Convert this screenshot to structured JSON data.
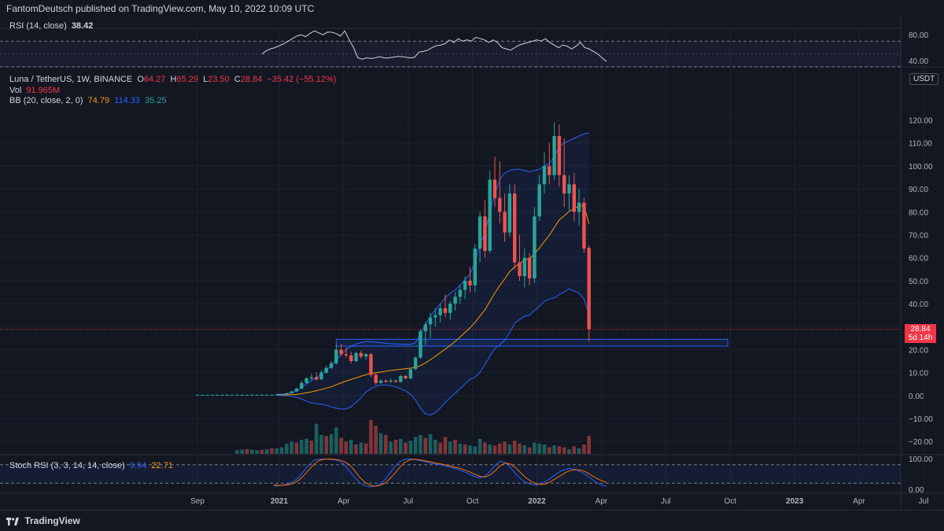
{
  "header": {
    "published": "FantomDeutsch published on TradingView.com, May 10, 2022 10:09 UTC"
  },
  "rsi": {
    "label": "RSI (14, close)",
    "value": "38.42",
    "ticks": [
      "80.00",
      "40.00"
    ]
  },
  "main_legend": {
    "symbol": "Luna / TetherUS, 1W, BINANCE",
    "o_label": "O",
    "o": "64.27",
    "h_label": "H",
    "h": "65.29",
    "l_label": "L",
    "l": "23.50",
    "c_label": "C",
    "c": "28.84",
    "change": "−35.42 (−55.12%)",
    "vol_label": "Vol",
    "vol": "91.965M",
    "bb_label": "BB (20, close, 2, 0)",
    "bb_mid": "74.79",
    "bb_up": "114.33",
    "bb_low": "35.25"
  },
  "currency": "USDT",
  "price_tag": {
    "price": "28.84",
    "countdown": "5d 14h"
  },
  "stoch": {
    "label": "Stoch RSI (3, 3, 14, 14, close)",
    "k": "9.94",
    "d": "22.71",
    "ticks": [
      "100.00",
      "0.00"
    ]
  },
  "footer": {
    "brand": "TradingView"
  },
  "colors": {
    "up": "#26a69a",
    "down": "#ef5350",
    "bb_mid": "#ff9800",
    "bb_band": "#2962ff",
    "bg": "#131722"
  },
  "chart_data": {
    "type": "candlestick",
    "y_ticks": [
      120,
      110,
      100,
      90,
      80,
      70,
      60,
      50,
      40,
      30,
      20,
      10,
      0,
      -10,
      -20
    ],
    "y_tick_labels": [
      "120.00",
      "110.00",
      "100.00",
      "90.00",
      "80.00",
      "70.00",
      "60.00",
      "50.00",
      "40.00",
      "30.00",
      "20.00",
      "10.00",
      "0.00",
      "−10.00",
      "−20.00"
    ],
    "ylim": [
      -22,
      126
    ],
    "x_labels": [
      "Sep",
      "2021",
      "Apr",
      "Jul",
      "Oct",
      "2022",
      "Apr",
      "Jul",
      "Oct",
      "2023",
      "Apr",
      "Jul"
    ],
    "x_label_weeks": [
      0,
      16.5,
      29.5,
      42.5,
      55.5,
      68.5,
      81.5,
      94.5,
      107.5,
      120.5,
      133.5,
      146.5
    ],
    "candles": [
      [
        0.3,
        0.3,
        0.3,
        0.3
      ],
      [
        0.3,
        0.3,
        0.3,
        0.3
      ],
      [
        0.3,
        0.3,
        0.3,
        0.3
      ],
      [
        0.3,
        0.3,
        0.3,
        0.3
      ],
      [
        0.3,
        0.4,
        0.2,
        0.3
      ],
      [
        0.3,
        0.4,
        0.2,
        0.3
      ],
      [
        0.3,
        0.4,
        0.2,
        0.3
      ],
      [
        0.3,
        0.4,
        0.2,
        0.3
      ],
      [
        0.3,
        0.4,
        0.2,
        0.3
      ],
      [
        0.3,
        0.4,
        0.2,
        0.3
      ],
      [
        0.3,
        0.4,
        0.2,
        0.3
      ],
      [
        0.3,
        0.4,
        0.2,
        0.3
      ],
      [
        0.3,
        0.4,
        0.2,
        0.3
      ],
      [
        0.3,
        0.4,
        0.2,
        0.3
      ],
      [
        0.3,
        0.4,
        0.2,
        0.3
      ],
      [
        0.3,
        0.4,
        0.2,
        0.3
      ],
      [
        0.4,
        0.6,
        0.3,
        0.5
      ],
      [
        0.5,
        0.7,
        0.4,
        0.6
      ],
      [
        0.6,
        1.2,
        0.5,
        1.0
      ],
      [
        1.0,
        2.0,
        0.8,
        1.8
      ],
      [
        1.8,
        3.5,
        1.6,
        3.0
      ],
      [
        3.0,
        6.5,
        2.8,
        5.5
      ],
      [
        5.5,
        8.0,
        5.0,
        7.5
      ],
      [
        7.5,
        9.5,
        6.5,
        8.0
      ],
      [
        8.0,
        10.0,
        6.5,
        7.0
      ],
      [
        7.0,
        11.0,
        6.8,
        10.0
      ],
      [
        10.0,
        13.0,
        9.5,
        12.0
      ],
      [
        12.0,
        15.0,
        11.5,
        14.0
      ],
      [
        14.0,
        22.0,
        13.5,
        20.0
      ],
      [
        20.0,
        22.5,
        17.0,
        18.0
      ],
      [
        18.0,
        21.0,
        16.5,
        17.5
      ],
      [
        17.5,
        19.0,
        14.0,
        15.0
      ],
      [
        15.0,
        19.0,
        14.5,
        18.5
      ],
      [
        18.5,
        19.5,
        16.0,
        17.0
      ],
      [
        17.0,
        18.5,
        15.5,
        18.0
      ],
      [
        18.0,
        18.5,
        8.0,
        9.0
      ],
      [
        9.0,
        10.0,
        4.5,
        5.5
      ],
      [
        5.5,
        7.0,
        5.0,
        6.5
      ],
      [
        6.5,
        7.0,
        5.5,
        6.0
      ],
      [
        6.0,
        7.5,
        5.5,
        6.5
      ],
      [
        6.5,
        7.0,
        5.5,
        6.0
      ],
      [
        6.0,
        9.0,
        5.5,
        8.5
      ],
      [
        8.5,
        9.0,
        7.0,
        7.5
      ],
      [
        7.5,
        12.0,
        7.0,
        11.5
      ],
      [
        11.5,
        17.0,
        11.0,
        16.5
      ],
      [
        16.5,
        29.0,
        16.0,
        28.0
      ],
      [
        28.0,
        32.0,
        22.0,
        31.0
      ],
      [
        31.0,
        36.0,
        25.0,
        34.0
      ],
      [
        34.0,
        38.0,
        30.0,
        35.0
      ],
      [
        35.0,
        40.0,
        32.0,
        38.0
      ],
      [
        38.0,
        44.0,
        34.0,
        36.0
      ],
      [
        36.0,
        41.0,
        33.0,
        40.0
      ],
      [
        40.0,
        45.0,
        37.0,
        43.0
      ],
      [
        43.0,
        48.0,
        40.0,
        46.0
      ],
      [
        46.0,
        52.0,
        42.0,
        50.0
      ],
      [
        50.0,
        56.0,
        45.0,
        48.0
      ],
      [
        48.0,
        66.0,
        45.0,
        64.0
      ],
      [
        64.0,
        80.0,
        58.0,
        78.0
      ],
      [
        78.0,
        85.0,
        60.0,
        63.0
      ],
      [
        63.0,
        98.0,
        62.0,
        94.0
      ],
      [
        94.0,
        104.0,
        82.0,
        86.0
      ],
      [
        86.0,
        102.0,
        75.0,
        80.0
      ],
      [
        80.0,
        88.0,
        67.0,
        71.0
      ],
      [
        71.0,
        92.0,
        69.0,
        88.0
      ],
      [
        88.0,
        92.0,
        55.0,
        58.0
      ],
      [
        58.0,
        70.0,
        50.0,
        52.0
      ],
      [
        52.0,
        64.0,
        47.0,
        60.0
      ],
      [
        60.0,
        62.0,
        48.0,
        51.0
      ],
      [
        51.0,
        82.0,
        49.0,
        78.0
      ],
      [
        78.0,
        96.0,
        76.0,
        92.0
      ],
      [
        92.0,
        106.0,
        88.0,
        100.0
      ],
      [
        100.0,
        110.0,
        92.0,
        96.0
      ],
      [
        96.0,
        119.0,
        94.0,
        113.0
      ],
      [
        113.0,
        118.0,
        91.0,
        96.0
      ],
      [
        96.0,
        112.0,
        82.0,
        88.0
      ],
      [
        88.0,
        96.0,
        80.0,
        92.0
      ],
      [
        92.0,
        97.0,
        76.0,
        80.0
      ],
      [
        80.0,
        90.0,
        74.0,
        84.0
      ],
      [
        84.0,
        86.0,
        62.0,
        64.0
      ],
      [
        64.27,
        65.29,
        23.5,
        28.84
      ]
    ],
    "volume": [
      [
        0.0,
        1,
        0
      ],
      [
        0,
        1,
        0
      ],
      [
        0,
        1,
        0
      ],
      [
        0,
        1,
        0
      ],
      [
        0,
        1,
        0
      ],
      [
        0,
        1,
        0
      ],
      [
        0,
        1,
        0
      ],
      [
        0,
        1,
        0
      ],
      [
        8,
        1
      ],
      [
        9,
        1
      ],
      [
        10,
        0
      ],
      [
        9,
        1
      ],
      [
        8,
        1
      ],
      [
        9,
        0
      ],
      [
        10,
        1
      ],
      [
        12,
        0
      ],
      [
        12,
        1
      ],
      [
        14,
        1
      ],
      [
        22,
        1
      ],
      [
        26,
        1
      ],
      [
        24,
        0
      ],
      [
        30,
        1
      ],
      [
        32,
        1
      ],
      [
        28,
        0
      ],
      [
        64,
        1
      ],
      [
        40,
        1
      ],
      [
        38,
        0
      ],
      [
        42,
        1
      ],
      [
        56,
        1
      ],
      [
        34,
        0
      ],
      [
        26,
        0
      ],
      [
        30,
        1
      ],
      [
        20,
        0
      ],
      [
        24,
        1
      ],
      [
        22,
        0
      ],
      [
        72,
        0
      ],
      [
        60,
        0
      ],
      [
        44,
        1
      ],
      [
        40,
        0
      ],
      [
        26,
        1
      ],
      [
        30,
        0
      ],
      [
        32,
        1
      ],
      [
        24,
        0
      ],
      [
        28,
        1
      ],
      [
        36,
        1
      ],
      [
        40,
        1
      ],
      [
        34,
        0
      ],
      [
        42,
        1
      ],
      [
        30,
        1
      ],
      [
        24,
        0
      ],
      [
        36,
        0
      ],
      [
        26,
        1
      ],
      [
        30,
        0
      ],
      [
        22,
        1
      ],
      [
        20,
        0
      ],
      [
        18,
        1
      ],
      [
        16,
        1
      ],
      [
        32,
        1
      ],
      [
        24,
        0
      ],
      [
        20,
        1
      ],
      [
        18,
        0
      ],
      [
        22,
        0
      ],
      [
        26,
        0
      ],
      [
        20,
        1
      ],
      [
        28,
        0
      ],
      [
        22,
        0
      ],
      [
        18,
        1
      ],
      [
        14,
        0
      ],
      [
        24,
        1
      ],
      [
        22,
        1
      ],
      [
        20,
        1
      ],
      [
        14,
        0
      ],
      [
        18,
        1
      ],
      [
        16,
        0
      ],
      [
        14,
        0
      ],
      [
        10,
        1
      ],
      [
        16,
        0
      ],
      [
        12,
        1
      ],
      [
        20,
        0
      ],
      [
        38,
        0
      ]
    ],
    "bb_mid": [
      null,
      null,
      null,
      null,
      null,
      null,
      null,
      null,
      null,
      null,
      null,
      null,
      null,
      null,
      null,
      null,
      0.3,
      0.3,
      0.3,
      0.4,
      0.5,
      0.8,
      1.2,
      1.6,
      2.1,
      2.6,
      3.2,
      3.8,
      4.7,
      5.5,
      6.3,
      7.0,
      7.7,
      8.4,
      9.1,
      9.6,
      9.9,
      10.2,
      10.6,
      10.9,
      11.2,
      11.4,
      11.7,
      11.9,
      12.3,
      13.0,
      14.2,
      15.6,
      17.1,
      18.7,
      20.2,
      21.8,
      23.6,
      25.5,
      27.5,
      29.5,
      31.8,
      34.6,
      37.3,
      41.0,
      44.6,
      47.9,
      50.8,
      54.0,
      56.0,
      57.5,
      59.0,
      59.6,
      61.8,
      64.2,
      67.1,
      69.8,
      73.2,
      76.5,
      78.3,
      80.2,
      81.4,
      82.5,
      82.6,
      74.8
    ],
    "bb_up": [
      null,
      null,
      null,
      null,
      null,
      null,
      null,
      null,
      null,
      null,
      null,
      null,
      null,
      null,
      null,
      null,
      0.5,
      0.6,
      0.8,
      1.2,
      2.0,
      3.5,
      5.0,
      6.5,
      8.0,
      9.2,
      11.0,
      13.0,
      15.5,
      18.0,
      20.0,
      21.5,
      22.5,
      23.0,
      23.5,
      23.5,
      23.3,
      23.0,
      22.8,
      22.6,
      22.5,
      22.4,
      22.3,
      22.3,
      23.0,
      27.0,
      31.0,
      34.5,
      37.5,
      40.0,
      42.5,
      44.5,
      46.0,
      48.0,
      50.5,
      53.0,
      58.0,
      66.0,
      71.0,
      80.0,
      88.0,
      94.0,
      97.0,
      98.0,
      98.5,
      98.5,
      98.0,
      97.5,
      98.0,
      98.5,
      100.0,
      101.0,
      104.0,
      108.5,
      110.0,
      111.0,
      112.0,
      113.0,
      114.0,
      114.3
    ],
    "bb_low": [
      null,
      null,
      null,
      null,
      null,
      null,
      null,
      null,
      null,
      null,
      null,
      null,
      null,
      null,
      null,
      null,
      0.1,
      0.0,
      -0.2,
      -0.4,
      -0.8,
      -1.5,
      -2.5,
      -3.2,
      -3.6,
      -3.8,
      -4.3,
      -5.0,
      -5.5,
      -6.0,
      -5.8,
      -5.0,
      -3.0,
      -1.0,
      1.5,
      3.0,
      4.0,
      4.5,
      4.5,
      4.3,
      3.8,
      3.0,
      2.0,
      0.5,
      -2.0,
      -5.5,
      -8.0,
      -8.5,
      -7.5,
      -5.5,
      -3.0,
      -1.0,
      1.0,
      3.0,
      5.0,
      7.0,
      8.0,
      10.0,
      13.5,
      17.0,
      20.5,
      22.0,
      24.0,
      27.5,
      31.5,
      33.0,
      34.5,
      35.0,
      37.0,
      39.0,
      41.0,
      42.0,
      42.5,
      44.0,
      45.0,
      46.5,
      45.5,
      44.5,
      42.0,
      35.3
    ],
    "support_zone": {
      "low": 21.5,
      "high": 24.5,
      "start_week": 28,
      "end_week": 107
    },
    "rsi_series": [
      null,
      null,
      null,
      null,
      null,
      null,
      null,
      null,
      null,
      null,
      null,
      null,
      null,
      null,
      null,
      null,
      null,
      null,
      null,
      null,
      null,
      null,
      null,
      null,
      null,
      null,
      null,
      null,
      null,
      null,
      null,
      null,
      null,
      null,
      null,
      null,
      null,
      null,
      null,
      null,
      null,
      null,
      null,
      null,
      null,
      null,
      null,
      null,
      50,
      55,
      58,
      60,
      63,
      66,
      70,
      74,
      78,
      80,
      77,
      82,
      86,
      83,
      80,
      84,
      84,
      82,
      78,
      86,
      72,
      60,
      44,
      42,
      44,
      43,
      44,
      46,
      44,
      44,
      45,
      46,
      46,
      45,
      44,
      45,
      53,
      54,
      56,
      60,
      63,
      64,
      66,
      72,
      68,
      74,
      70,
      72,
      70,
      76,
      74,
      72,
      68,
      72,
      68,
      60,
      58,
      56,
      60,
      64,
      66,
      68,
      70,
      72,
      70,
      74,
      68,
      64,
      60,
      64,
      62,
      58,
      62,
      68,
      60,
      58,
      54,
      50,
      44,
      38.4
    ],
    "stoch_k": [
      10,
      12,
      14,
      18,
      26,
      40,
      60,
      80,
      95,
      98,
      99,
      98,
      96,
      92,
      80,
      60,
      40,
      22,
      12,
      8,
      10,
      16,
      30,
      52,
      74,
      90,
      98,
      99,
      97,
      94,
      90,
      86,
      82,
      80,
      76,
      72,
      68,
      62,
      56,
      48,
      40,
      38,
      44,
      60,
      80,
      92,
      86,
      70,
      50,
      34,
      22,
      16,
      14,
      18,
      26,
      38,
      50,
      60,
      66,
      68,
      64,
      56,
      46,
      34,
      22,
      14,
      9.9
    ],
    "stoch_d": [
      14,
      13,
      13,
      15,
      20,
      30,
      46,
      64,
      82,
      94,
      98,
      99,
      98,
      96,
      90,
      80,
      62,
      40,
      24,
      14,
      10,
      12,
      20,
      34,
      52,
      72,
      88,
      96,
      98,
      96,
      93,
      90,
      86,
      83,
      80,
      76,
      72,
      68,
      62,
      56,
      48,
      42,
      40,
      48,
      62,
      78,
      86,
      82,
      70,
      54,
      38,
      26,
      18,
      16,
      18,
      26,
      36,
      46,
      56,
      62,
      64,
      62,
      56,
      46,
      36,
      28,
      22.7
    ]
  }
}
